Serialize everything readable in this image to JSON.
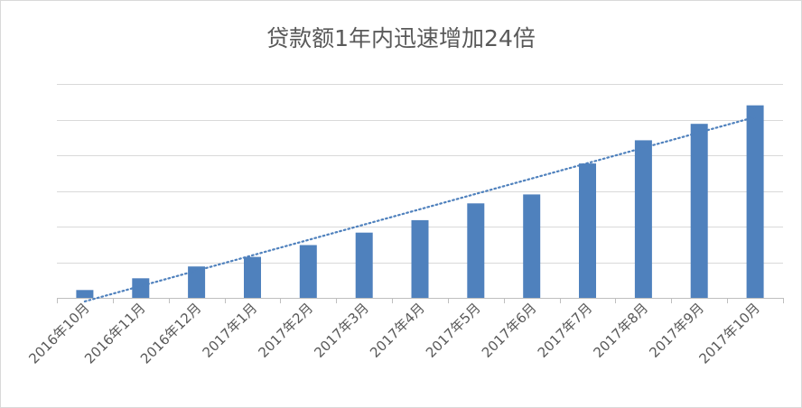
{
  "chart_data": {
    "type": "bar",
    "title": "贷款额1年内迅速增加24倍",
    "xlabel": "",
    "ylabel": "",
    "categories": [
      "2016年10月",
      "2016年11月",
      "2016年12月",
      "2017年1月",
      "2017年2月",
      "2017年3月",
      "2017年4月",
      "2017年5月",
      "2017年6月",
      "2017年7月",
      "2017年8月",
      "2017年9月",
      "2017年10月"
    ],
    "series": [
      {
        "values": [
          0.22,
          0.55,
          0.88,
          1.15,
          1.48,
          1.83,
          2.18,
          2.65,
          2.9,
          3.77,
          4.42,
          4.88,
          5.4
        ]
      }
    ],
    "trendline": {
      "type": "linear",
      "style": "dotted"
    },
    "ylim": [
      0,
      6
    ],
    "y_tick_labels_shown": false,
    "grid": true,
    "legend": "none",
    "colors": {
      "bar": "#4f81bd",
      "trendline": "#4f81bd",
      "grid": "#d9d9d9",
      "text": "#595959"
    }
  }
}
